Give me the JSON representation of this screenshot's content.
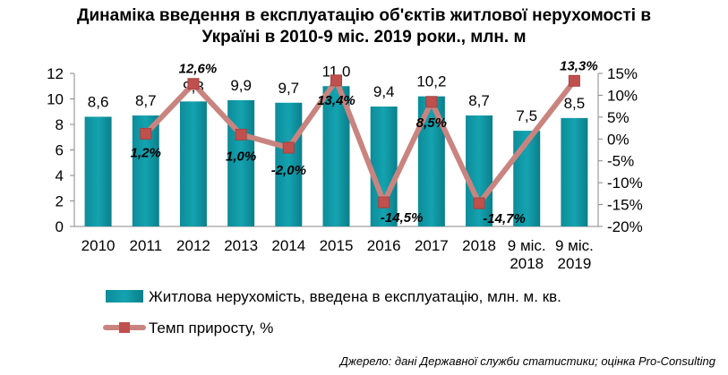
{
  "chart_data": {
    "type": "bar",
    "title_lines": [
      "Динаміка введення в експлуатацію об'єктів житлової нерухомості в",
      "Україні в 2010-9 міс. 2019 роки., млн. м"
    ],
    "categories": [
      [
        "2010"
      ],
      [
        "2011"
      ],
      [
        "2012"
      ],
      [
        "2013"
      ],
      [
        "2014"
      ],
      [
        "2015"
      ],
      [
        "2016"
      ],
      [
        "2017"
      ],
      [
        "2018"
      ],
      [
        "9 міс.",
        "2018"
      ],
      [
        "9 міс.",
        "2019"
      ]
    ],
    "series": [
      {
        "name": "Житлова нерухомість, введена в експлуатацію, млн. м. кв.",
        "chart": "bar",
        "axis": "left",
        "color": "#14a3b0",
        "values": [
          8.6,
          8.7,
          9.8,
          9.9,
          9.7,
          11.0,
          9.4,
          10.2,
          8.7,
          7.5,
          8.5
        ],
        "labels": [
          "8,6",
          "8,7",
          "9,8",
          "9,9",
          "9,7",
          "11,0",
          "9,4",
          "10,2",
          "8,7",
          "7,5",
          "8,5"
        ]
      },
      {
        "name": "Темп приросту, %",
        "chart": "line",
        "axis": "right",
        "color": "#c9847f",
        "marker_color": "#c0504d",
        "points": [
          {
            "index": 1,
            "value": 1.2,
            "label": "1,2%"
          },
          {
            "index": 2,
            "value": 12.6,
            "label": "12,6%"
          },
          {
            "index": 3,
            "value": 1.0,
            "label": "1,0%"
          },
          {
            "index": 4,
            "value": -2.0,
            "label": "-2,0%"
          },
          {
            "index": 5,
            "value": 13.4,
            "label": "13,4%"
          },
          {
            "index": 6,
            "value": -14.5,
            "label": "-14,5%"
          },
          {
            "index": 7,
            "value": 8.5,
            "label": "8,5%"
          },
          {
            "index": 8,
            "value": -14.7,
            "label": "-14,7%"
          },
          {
            "index": 10,
            "value": 13.3,
            "label": "13,3%"
          }
        ]
      }
    ],
    "y_left": {
      "min": 0,
      "max": 12,
      "ticks": [
        "0",
        "2",
        "4",
        "6",
        "8",
        "10",
        "12"
      ]
    },
    "y_right": {
      "min": -20,
      "max": 15,
      "ticks": [
        "-20%",
        "-15%",
        "-10%",
        "-5%",
        "0%",
        "5%",
        "10%",
        "15%"
      ]
    },
    "legend_position": "bottom",
    "grid": false
  },
  "source": "Джерело: дані Державної служби статистики; оцінка Pro-Consulting"
}
